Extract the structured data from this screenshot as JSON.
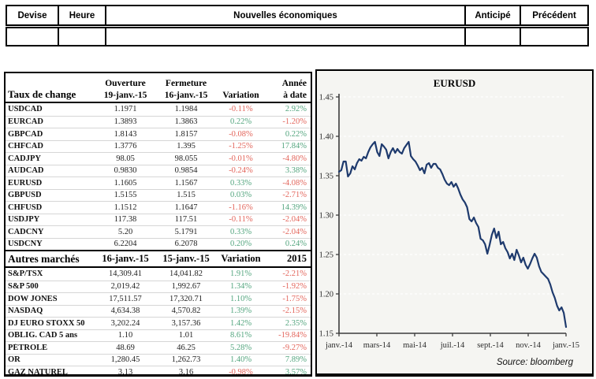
{
  "news_table": {
    "headers": [
      "Devise",
      "Heure",
      "Nouvelles économiques",
      "Anticipé",
      "Précédent"
    ]
  },
  "rates_table": {
    "title": "Taux de change",
    "col_open_l1": "Ouverture",
    "col_open_l2": "19-janv.-15",
    "col_close_l1": "Fermeture",
    "col_close_l2": "16-janv.-15",
    "col_var": "Variation",
    "col_ytd_l1": "Année",
    "col_ytd_l2": "à date",
    "rows": [
      [
        "USDCAD",
        "1.1971",
        "1.1984",
        "-0.11%",
        "2.92%"
      ],
      [
        "EURCAD",
        "1.3893",
        "1.3863",
        "0.22%",
        "-1.20%"
      ],
      [
        "GBPCAD",
        "1.8143",
        "1.8157",
        "-0.08%",
        "0.22%"
      ],
      [
        "CHFCAD",
        "1.3776",
        "1.395",
        "-1.25%",
        "17.84%"
      ],
      [
        "CADJPY",
        "98.05",
        "98.055",
        "-0.01%",
        "-4.80%"
      ],
      [
        "AUDCAD",
        "0.9830",
        "0.9854",
        "-0.24%",
        "3.38%"
      ],
      [
        "EURUSD",
        "1.1605",
        "1.1567",
        "0.33%",
        "-4.08%"
      ],
      [
        "GBPUSD",
        "1.5155",
        "1.515",
        "0.03%",
        "-2.71%"
      ],
      [
        "CHFUSD",
        "1.1512",
        "1.1647",
        "-1.16%",
        "14.39%"
      ],
      [
        "USDJPY",
        "117.38",
        "117.51",
        "-0.11%",
        "-2.04%"
      ],
      [
        "CADCNY",
        "5.20",
        "5.1791",
        "0.33%",
        "-2.04%"
      ],
      [
        "USDCNY",
        "6.2204",
        "6.2078",
        "0.20%",
        "0.24%"
      ]
    ]
  },
  "markets_table": {
    "title": "Autres marchés",
    "col1": "16-janv.-15",
    "col2": "15-janv.-15",
    "col3": "Variation",
    "col4": "2015",
    "rows": [
      [
        "S&P/TSX",
        "14,309.41",
        "14,041.82",
        "1.91%",
        "-2.21%"
      ],
      [
        "S&P 500",
        "2,019.42",
        "1,992.67",
        "1.34%",
        "-1.92%"
      ],
      [
        "DOW JONES",
        "17,511.57",
        "17,320.71",
        "1.10%",
        "-1.75%"
      ],
      [
        "NASDAQ",
        "4,634.38",
        "4,570.82",
        "1.39%",
        "-2.15%"
      ],
      [
        "DJ EURO STOXX 50",
        "3,202.24",
        "3,157.36",
        "1.42%",
        "2.35%"
      ],
      [
        "OBLIG. CAD 5 ans",
        "1.10",
        "1.01",
        "8.61%",
        "-19.84%"
      ],
      [
        "PÉTROLE",
        "48.69",
        "46.25",
        "5.28%",
        "-9.27%"
      ],
      [
        "OR",
        "1,280.45",
        "1,262.73",
        "1.40%",
        "7.89%"
      ],
      [
        "GAZ NATUREL",
        "3.13",
        "3.16",
        "-0.98%",
        "3.57%"
      ]
    ]
  },
  "chart_data": {
    "type": "line",
    "title": "EURUSD",
    "source": "Source: bloomberg",
    "x_labels": [
      "janv.-14",
      "mars-14",
      "mai-14",
      "juil.-14",
      "sept.-14",
      "nov.-14",
      "janv.-15"
    ],
    "y_ticks": [
      1.15,
      1.2,
      1.25,
      1.3,
      1.35,
      1.4,
      1.45
    ],
    "ylim": [
      1.15,
      1.45
    ],
    "grid": "horizontal-dashed",
    "legend": "none",
    "line_color": "#1e3a6d",
    "series": [
      1.355,
      1.357,
      1.368,
      1.368,
      1.349,
      1.353,
      1.362,
      1.358,
      1.366,
      1.371,
      1.369,
      1.374,
      1.372,
      1.38,
      1.386,
      1.39,
      1.393,
      1.38,
      1.375,
      1.39,
      1.387,
      1.383,
      1.372,
      1.38,
      1.385,
      1.379,
      1.384,
      1.38,
      1.378,
      1.385,
      1.389,
      1.393,
      1.375,
      1.371,
      1.368,
      1.363,
      1.357,
      1.36,
      1.353,
      1.364,
      1.366,
      1.36,
      1.365,
      1.365,
      1.36,
      1.358,
      1.352,
      1.345,
      1.34,
      1.338,
      1.342,
      1.336,
      1.34,
      1.334,
      1.326,
      1.32,
      1.316,
      1.31,
      1.295,
      1.292,
      1.297,
      1.29,
      1.285,
      1.27,
      1.268,
      1.263,
      1.251,
      1.262,
      1.275,
      1.283,
      1.271,
      1.279,
      1.263,
      1.266,
      1.258,
      1.253,
      1.245,
      1.251,
      1.243,
      1.256,
      1.249,
      1.24,
      1.246,
      1.237,
      1.232,
      1.238,
      1.245,
      1.251,
      1.246,
      1.235,
      1.228,
      1.225,
      1.222,
      1.219,
      1.212,
      1.202,
      1.195,
      1.185,
      1.179,
      1.183,
      1.176,
      1.158
    ]
  },
  "colors": {
    "positive": "#53a57e",
    "negative": "#e3655b",
    "line": "#1e3a6d"
  }
}
